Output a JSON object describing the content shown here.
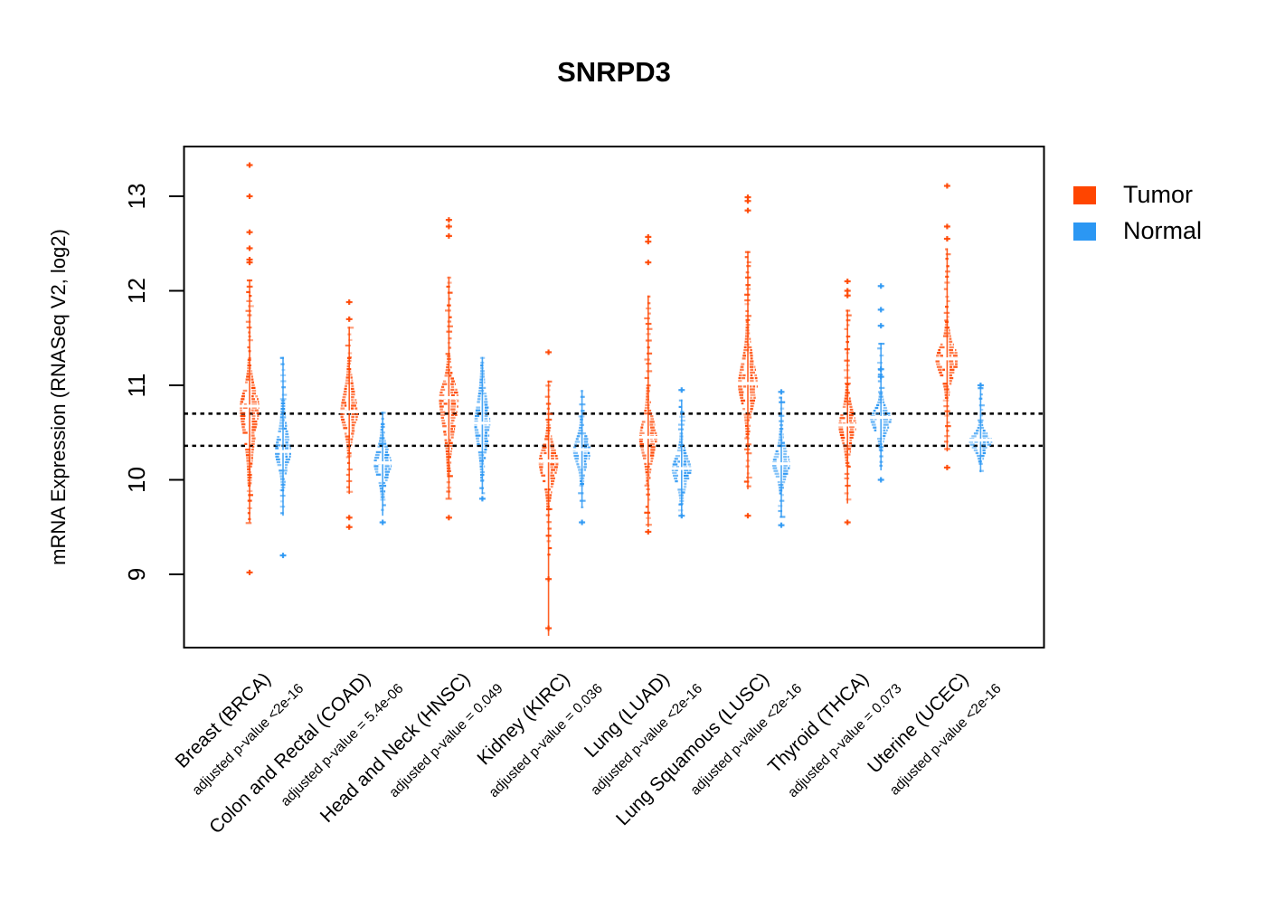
{
  "chart_data": {
    "type": "beeswarm-violin",
    "title": "SNRPD3",
    "ylabel": "mRNA Expression (RNASeq V2, log2)",
    "y_ticks": [
      9,
      10,
      11,
      12,
      13
    ],
    "ylim": [
      8.2,
      13.5
    ],
    "grid": false,
    "reference_lines": [
      10.7,
      10.36
    ],
    "reference_line_style": "dotted-black",
    "colors": {
      "tumor": "#FF4500",
      "normal": "#2B97F3",
      "axis": "#000000",
      "background": "#ffffff"
    },
    "legend": {
      "position": "top-right-outside",
      "entries": [
        {
          "label": "Tumor",
          "color": "#FF4500"
        },
        {
          "label": "Normal",
          "color": "#2B97F3"
        }
      ]
    },
    "groups": [
      {
        "label": "Breast (BRCA)",
        "pvalue_label": "adjusted p-value <2e-16",
        "tumor": {
          "median": 10.78,
          "dense_low": 9.95,
          "dense_high": 11.28,
          "tail_low": 9.55,
          "tail_high": 12.12,
          "outliers": [
            9.02,
            12.3,
            12.33,
            12.45,
            12.62,
            13.0,
            13.33
          ],
          "width": 11
        },
        "normal": {
          "median": 10.3,
          "dense_low": 9.9,
          "dense_high": 10.85,
          "tail_low": 9.62,
          "tail_high": 11.3,
          "outliers": [
            9.2
          ],
          "width": 9
        }
      },
      {
        "label": "Colon and Rectal (COAD)",
        "pvalue_label": "adjusted p-value = 5.4e-06",
        "tumor": {
          "median": 10.72,
          "dense_low": 10.25,
          "dense_high": 11.3,
          "tail_low": 9.85,
          "tail_high": 11.62,
          "outliers": [
            9.5,
            9.6,
            11.7,
            11.88
          ],
          "width": 10
        },
        "normal": {
          "median": 10.18,
          "dense_low": 9.8,
          "dense_high": 10.6,
          "tail_low": 9.62,
          "tail_high": 10.72,
          "outliers": [
            9.55
          ],
          "width": 10
        }
      },
      {
        "label": "Head and Neck (HNSC)",
        "pvalue_label": "adjusted p-value = 0.049",
        "tumor": {
          "median": 10.87,
          "dense_low": 10.05,
          "dense_high": 11.32,
          "tail_low": 9.8,
          "tail_high": 12.15,
          "outliers": [
            9.6,
            12.58,
            12.68,
            12.75
          ],
          "width": 11
        },
        "normal": {
          "median": 10.6,
          "dense_low": 10.0,
          "dense_high": 11.25,
          "tail_low": 9.85,
          "tail_high": 11.3,
          "outliers": [
            9.8
          ],
          "width": 9
        }
      },
      {
        "label": "Kidney (KIRC)",
        "pvalue_label": "adjusted p-value = 0.036",
        "tumor": {
          "median": 10.2,
          "dense_low": 9.7,
          "dense_high": 10.62,
          "tail_low": 9.2,
          "tail_high": 11.05,
          "stem_low": 8.35,
          "outliers": [
            8.43,
            8.95,
            11.35
          ],
          "width": 11
        },
        "normal": {
          "median": 10.32,
          "dense_low": 9.95,
          "dense_high": 10.68,
          "tail_low": 9.7,
          "tail_high": 10.95,
          "outliers": [
            9.55
          ],
          "width": 10
        }
      },
      {
        "label": "Lung (LUAD)",
        "pvalue_label": "adjusted p-value <2e-16",
        "tumor": {
          "median": 10.45,
          "dense_low": 9.95,
          "dense_high": 10.98,
          "tail_low": 9.5,
          "tail_high": 11.95,
          "outliers": [
            9.45,
            12.3,
            12.52,
            12.57
          ],
          "width": 10
        },
        "normal": {
          "median": 10.12,
          "dense_low": 9.75,
          "dense_high": 10.5,
          "tail_low": 9.65,
          "tail_high": 10.85,
          "outliers": [
            9.62,
            10.95
          ],
          "width": 11
        }
      },
      {
        "label": "Lung Squamous (LUSC)",
        "pvalue_label": "adjusted p-value <2e-16",
        "tumor": {
          "median": 11.02,
          "dense_low": 10.45,
          "dense_high": 11.68,
          "tail_low": 9.9,
          "tail_high": 12.42,
          "outliers": [
            9.62,
            12.85,
            12.95,
            12.99
          ],
          "width": 11
        },
        "normal": {
          "median": 10.17,
          "dense_low": 9.85,
          "dense_high": 10.55,
          "tail_low": 9.6,
          "tail_high": 10.88,
          "outliers": [
            9.52,
            10.93
          ],
          "width": 10
        }
      },
      {
        "label": "Thyroid (THCA)",
        "pvalue_label": "adjusted p-value = 0.073",
        "tumor": {
          "median": 10.58,
          "dense_low": 10.15,
          "dense_high": 11.02,
          "tail_low": 9.75,
          "tail_high": 11.8,
          "outliers": [
            9.55,
            11.95,
            12.0,
            12.1
          ],
          "width": 10
        },
        "normal": {
          "median": 10.66,
          "dense_low": 10.32,
          "dense_high": 10.92,
          "tail_low": 10.1,
          "tail_high": 11.45,
          "outliers": [
            10.0,
            11.09,
            11.17,
            11.63,
            11.8,
            12.05
          ],
          "width": 12
        }
      },
      {
        "label": "Uterine (UCEC)",
        "pvalue_label": "adjusted p-value <2e-16",
        "tumor": {
          "median": 11.28,
          "dense_low": 10.85,
          "dense_high": 11.68,
          "tail_low": 10.3,
          "tail_high": 12.45,
          "outliers": [
            10.13,
            12.55,
            12.68,
            13.11
          ],
          "width": 13
        },
        "normal": {
          "median": 10.42,
          "dense_low": 10.18,
          "dense_high": 10.62,
          "tail_low": 10.08,
          "tail_high": 10.98,
          "outliers": [
            11.0
          ],
          "width": 13
        }
      }
    ]
  }
}
